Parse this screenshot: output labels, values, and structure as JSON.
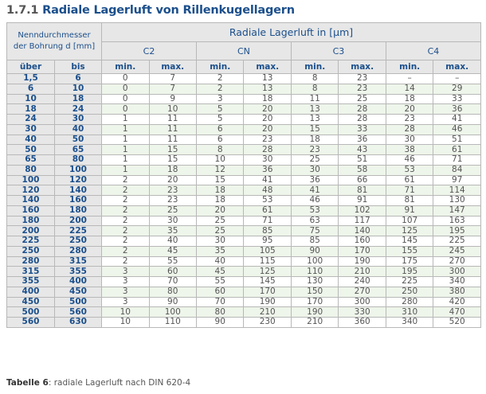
{
  "title": {
    "number": "1.7.1",
    "text": "Radiale Lagerluft von Rillenkugellagern"
  },
  "header": {
    "bore_label_line1": "Nenndurchmesser",
    "bore_label_line2": "der Bohrung d [mm]",
    "clearance_label": "Radiale Lagerluft in [µm]",
    "groups": [
      "C2",
      "CN",
      "C3",
      "C4"
    ],
    "over": "über",
    "to": "bis",
    "min": "min.",
    "max": "max."
  },
  "rows": [
    [
      "1,5",
      "6",
      "0",
      "7",
      "2",
      "13",
      "8",
      "23",
      "–",
      "–"
    ],
    [
      "6",
      "10",
      "0",
      "7",
      "2",
      "13",
      "8",
      "23",
      "14",
      "29"
    ],
    [
      "10",
      "18",
      "0",
      "9",
      "3",
      "18",
      "11",
      "25",
      "18",
      "33"
    ],
    [
      "18",
      "24",
      "0",
      "10",
      "5",
      "20",
      "13",
      "28",
      "20",
      "36"
    ],
    [
      "24",
      "30",
      "1",
      "11",
      "5",
      "20",
      "13",
      "28",
      "23",
      "41"
    ],
    [
      "30",
      "40",
      "1",
      "11",
      "6",
      "20",
      "15",
      "33",
      "28",
      "46"
    ],
    [
      "40",
      "50",
      "1",
      "11",
      "6",
      "23",
      "18",
      "36",
      "30",
      "51"
    ],
    [
      "50",
      "65",
      "1",
      "15",
      "8",
      "28",
      "23",
      "43",
      "38",
      "61"
    ],
    [
      "65",
      "80",
      "1",
      "15",
      "10",
      "30",
      "25",
      "51",
      "46",
      "71"
    ],
    [
      "80",
      "100",
      "1",
      "18",
      "12",
      "36",
      "30",
      "58",
      "53",
      "84"
    ],
    [
      "100",
      "120",
      "2",
      "20",
      "15",
      "41",
      "36",
      "66",
      "61",
      "97"
    ],
    [
      "120",
      "140",
      "2",
      "23",
      "18",
      "48",
      "41",
      "81",
      "71",
      "114"
    ],
    [
      "140",
      "160",
      "2",
      "23",
      "18",
      "53",
      "46",
      "91",
      "81",
      "130"
    ],
    [
      "160",
      "180",
      "2",
      "25",
      "20",
      "61",
      "53",
      "102",
      "91",
      "147"
    ],
    [
      "180",
      "200",
      "2",
      "30",
      "25",
      "71",
      "63",
      "117",
      "107",
      "163"
    ],
    [
      "200",
      "225",
      "2",
      "35",
      "25",
      "85",
      "75",
      "140",
      "125",
      "195"
    ],
    [
      "225",
      "250",
      "2",
      "40",
      "30",
      "95",
      "85",
      "160",
      "145",
      "225"
    ],
    [
      "250",
      "280",
      "2",
      "45",
      "35",
      "105",
      "90",
      "170",
      "155",
      "245"
    ],
    [
      "280",
      "315",
      "2",
      "55",
      "40",
      "115",
      "100",
      "190",
      "175",
      "270"
    ],
    [
      "315",
      "355",
      "3",
      "60",
      "45",
      "125",
      "110",
      "210",
      "195",
      "300"
    ],
    [
      "355",
      "400",
      "3",
      "70",
      "55",
      "145",
      "130",
      "240",
      "225",
      "340"
    ],
    [
      "400",
      "450",
      "3",
      "80",
      "60",
      "170",
      "150",
      "270",
      "250",
      "380"
    ],
    [
      "450",
      "500",
      "3",
      "90",
      "70",
      "190",
      "170",
      "300",
      "280",
      "420"
    ],
    [
      "500",
      "560",
      "10",
      "100",
      "80",
      "210",
      "190",
      "330",
      "310",
      "470"
    ],
    [
      "560",
      "630",
      "10",
      "110",
      "90",
      "230",
      "210",
      "360",
      "340",
      "520"
    ]
  ],
  "caption": {
    "label": "Tabelle 6",
    "text": ": radiale Lagerluft nach DIN 620-4"
  },
  "colors": {
    "accent": "#1b4f8c",
    "header_bg": "#e7e7e7",
    "alt_row": "#eef5ea"
  }
}
